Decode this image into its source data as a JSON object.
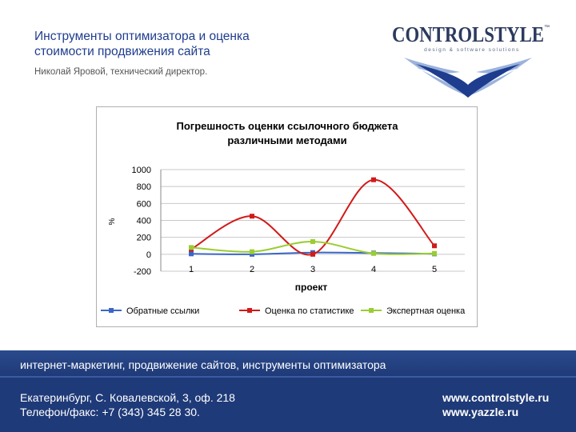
{
  "header": {
    "title_line1": "Инструменты оптимизатора и оценка",
    "title_line2": "стоимости продвижения сайта",
    "subtitle": "Николай Яровой, технический директор."
  },
  "logo": {
    "brand": "CONTROLSTYLE",
    "tm": "™",
    "tagline": "design & software solutions"
  },
  "colors": {
    "title": "#1f3d8f",
    "series_blue": "#3a66c8",
    "series_red": "#d11a1a",
    "series_green": "#9acd32",
    "footer": "#1f3a78"
  },
  "chart_data": {
    "type": "line",
    "title_line1": "Погрешность оценки ссылочного бюджета",
    "title_line2": "различными методами",
    "xlabel": "проект",
    "ylabel": "%",
    "categories": [
      "1",
      "2",
      "3",
      "4",
      "5"
    ],
    "ylim": [
      -200,
      1000
    ],
    "yticks": [
      "1000",
      "800",
      "600",
      "400",
      "200",
      "0",
      "-200"
    ],
    "grid": true,
    "legend_position": "bottom",
    "series": [
      {
        "name": "Обратные ссылки",
        "color": "#3a66c8",
        "marker": "square",
        "values": [
          5,
          0,
          20,
          15,
          5
        ]
      },
      {
        "name": "Оценка по статистике",
        "color": "#d11a1a",
        "marker": "square",
        "values": [
          60,
          450,
          0,
          880,
          100
        ]
      },
      {
        "name": "Экспертная оценка",
        "color": "#9acd32",
        "marker": "square",
        "values": [
          80,
          30,
          150,
          10,
          10
        ]
      }
    ]
  },
  "footer": {
    "tagline": "интернет-маркетинг, продвижение сайтов, инструменты оптимизатора",
    "address": "Екатеринбург, С. Ковалевской, 3, оф. 218",
    "phone": "Телефон/факс: +7 (343) 345 28 30.",
    "site1": "www.controlstyle.ru",
    "site2": "www.yazzle.ru"
  }
}
